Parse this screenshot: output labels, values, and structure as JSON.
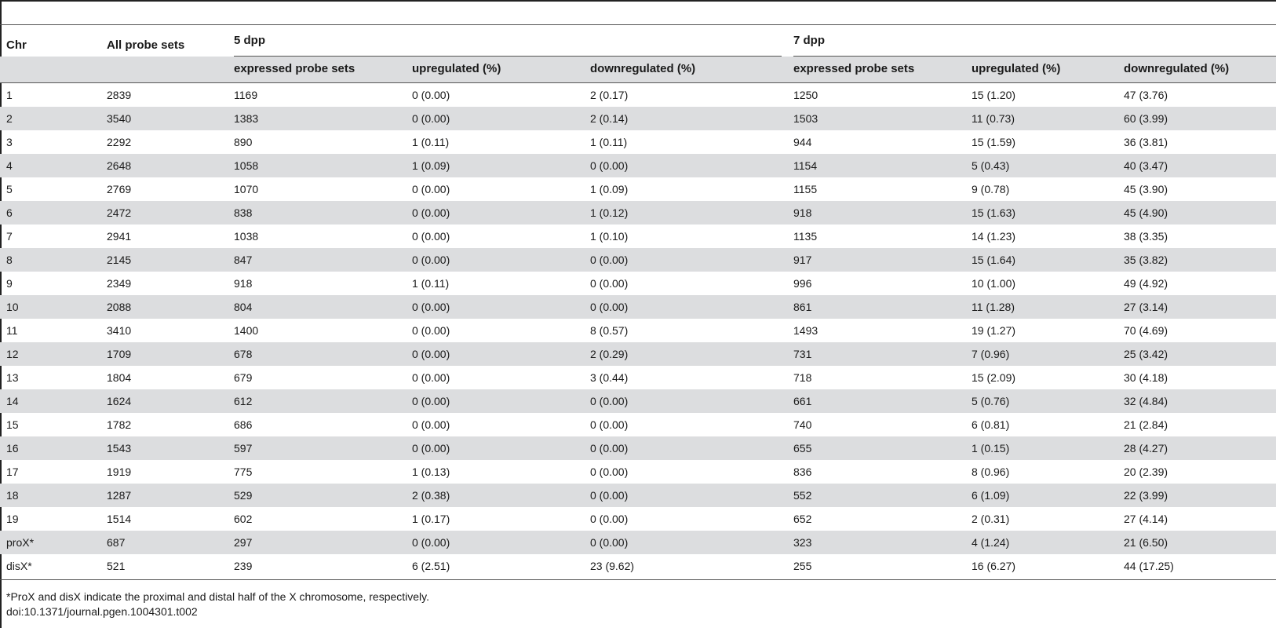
{
  "header": {
    "chr": "Chr",
    "all_probe_sets": "All probe sets",
    "group_5dpp": "5 dpp",
    "group_7dpp": "7 dpp",
    "sub": [
      "expressed probe sets",
      "upregulated (%)",
      "downregulated (%)",
      "expressed probe sets",
      "upregulated (%)",
      "downregulated (%)"
    ]
  },
  "rows": [
    [
      "1",
      "2839",
      "1169",
      "0 (0.00)",
      "2 (0.17)",
      "1250",
      "15 (1.20)",
      "47 (3.76)"
    ],
    [
      "2",
      "3540",
      "1383",
      "0 (0.00)",
      "2 (0.14)",
      "1503",
      "11 (0.73)",
      "60 (3.99)"
    ],
    [
      "3",
      "2292",
      "890",
      "1 (0.11)",
      "1 (0.11)",
      "944",
      "15 (1.59)",
      "36 (3.81)"
    ],
    [
      "4",
      "2648",
      "1058",
      "1 (0.09)",
      "0 (0.00)",
      "1154",
      "5 (0.43)",
      "40 (3.47)"
    ],
    [
      "5",
      "2769",
      "1070",
      "0 (0.00)",
      "1 (0.09)",
      "1155",
      "9 (0.78)",
      "45 (3.90)"
    ],
    [
      "6",
      "2472",
      "838",
      "0 (0.00)",
      "1 (0.12)",
      "918",
      "15 (1.63)",
      "45 (4.90)"
    ],
    [
      "7",
      "2941",
      "1038",
      "0 (0.00)",
      "1 (0.10)",
      "1135",
      "14 (1.23)",
      "38 (3.35)"
    ],
    [
      "8",
      "2145",
      "847",
      "0 (0.00)",
      "0 (0.00)",
      "917",
      "15 (1.64)",
      "35 (3.82)"
    ],
    [
      "9",
      "2349",
      "918",
      "1 (0.11)",
      "0 (0.00)",
      "996",
      "10 (1.00)",
      "49 (4.92)"
    ],
    [
      "10",
      "2088",
      "804",
      "0 (0.00)",
      "0 (0.00)",
      "861",
      "11 (1.28)",
      "27 (3.14)"
    ],
    [
      "11",
      "3410",
      "1400",
      "0 (0.00)",
      "8 (0.57)",
      "1493",
      "19 (1.27)",
      "70 (4.69)"
    ],
    [
      "12",
      "1709",
      "678",
      "0 (0.00)",
      "2 (0.29)",
      "731",
      "7 (0.96)",
      "25 (3.42)"
    ],
    [
      "13",
      "1804",
      "679",
      "0 (0.00)",
      "3 (0.44)",
      "718",
      "15 (2.09)",
      "30 (4.18)"
    ],
    [
      "14",
      "1624",
      "612",
      "0 (0.00)",
      "0 (0.00)",
      "661",
      "5 (0.76)",
      "32 (4.84)"
    ],
    [
      "15",
      "1782",
      "686",
      "0 (0.00)",
      "0 (0.00)",
      "740",
      "6 (0.81)",
      "21 (2.84)"
    ],
    [
      "16",
      "1543",
      "597",
      "0 (0.00)",
      "0 (0.00)",
      "655",
      "1 (0.15)",
      "28 (4.27)"
    ],
    [
      "17",
      "1919",
      "775",
      "1 (0.13)",
      "0 (0.00)",
      "836",
      "8 (0.96)",
      "20 (2.39)"
    ],
    [
      "18",
      "1287",
      "529",
      "2 (0.38)",
      "0 (0.00)",
      "552",
      "6 (1.09)",
      "22 (3.99)"
    ],
    [
      "19",
      "1514",
      "602",
      "1 (0.17)",
      "0 (0.00)",
      "652",
      "2 (0.31)",
      "27 (4.14)"
    ],
    [
      "proX*",
      "687",
      "297",
      "0 (0.00)",
      "0 (0.00)",
      "323",
      "4 (1.24)",
      "21 (6.50)"
    ],
    [
      "disX*",
      "521",
      "239",
      "6 (2.51)",
      "23 (9.62)",
      "255",
      "16 (6.27)",
      "44 (17.25)"
    ]
  ],
  "footnote": "*ProX and disX indicate the proximal and distal half of the X chromosome, respectively.",
  "doi": "doi:10.1371/journal.pgen.1004301.t002"
}
